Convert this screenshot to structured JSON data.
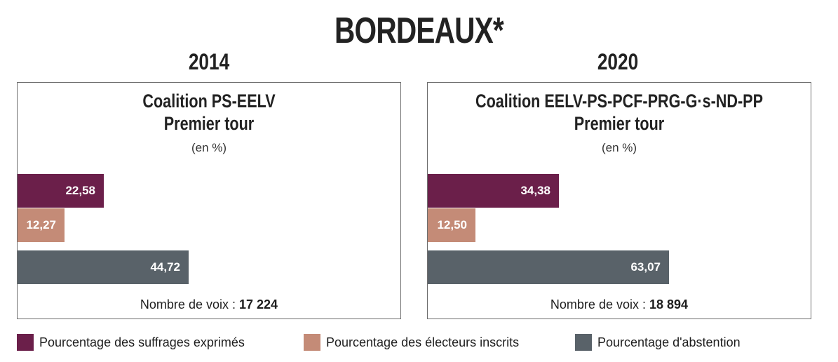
{
  "title": "BORDEAUX*",
  "colors": {
    "exprimes": "#6b1f4a",
    "inscrits": "#c48b77",
    "abstention": "#596269"
  },
  "legend": [
    {
      "label": "Pourcentage des suffrages exprimés",
      "color": "#6b1f4a"
    },
    {
      "label": "Pourcentage des électeurs inscrits",
      "color": "#c48b77"
    },
    {
      "label": "Pourcentage d'abstention",
      "color": "#596269"
    }
  ],
  "chart_data": [
    {
      "type": "bar",
      "orientation": "horizontal",
      "year": "2014",
      "title_line1": "Coalition PS-EELV",
      "title_line2": "Premier tour",
      "unit": "(en %)",
      "xlim": [
        0,
        100
      ],
      "series": [
        {
          "name": "Pourcentage des suffrages exprimés",
          "value": 22.58,
          "label": "22,58"
        },
        {
          "name": "Pourcentage des électeurs inscrits",
          "value": 12.27,
          "label": "12,27"
        },
        {
          "name": "Pourcentage d'abstention",
          "value": 44.72,
          "label": "44,72"
        }
      ],
      "votes_label": "Nombre de voix :",
      "votes_value": "17 224"
    },
    {
      "type": "bar",
      "orientation": "horizontal",
      "year": "2020",
      "title_line1": "Coalition EELV-PS-PCF-PRG-G·s-ND-PP",
      "title_line2": "Premier tour",
      "unit": "(en %)",
      "xlim": [
        0,
        100
      ],
      "series": [
        {
          "name": "Pourcentage des suffrages exprimés",
          "value": 34.38,
          "label": "34,38"
        },
        {
          "name": "Pourcentage des électeurs inscrits",
          "value": 12.5,
          "label": "12,50"
        },
        {
          "name": "Pourcentage d'abstention",
          "value": 63.07,
          "label": "63,07"
        }
      ],
      "votes_label": "Nombre de voix :",
      "votes_value": "18 894"
    }
  ]
}
